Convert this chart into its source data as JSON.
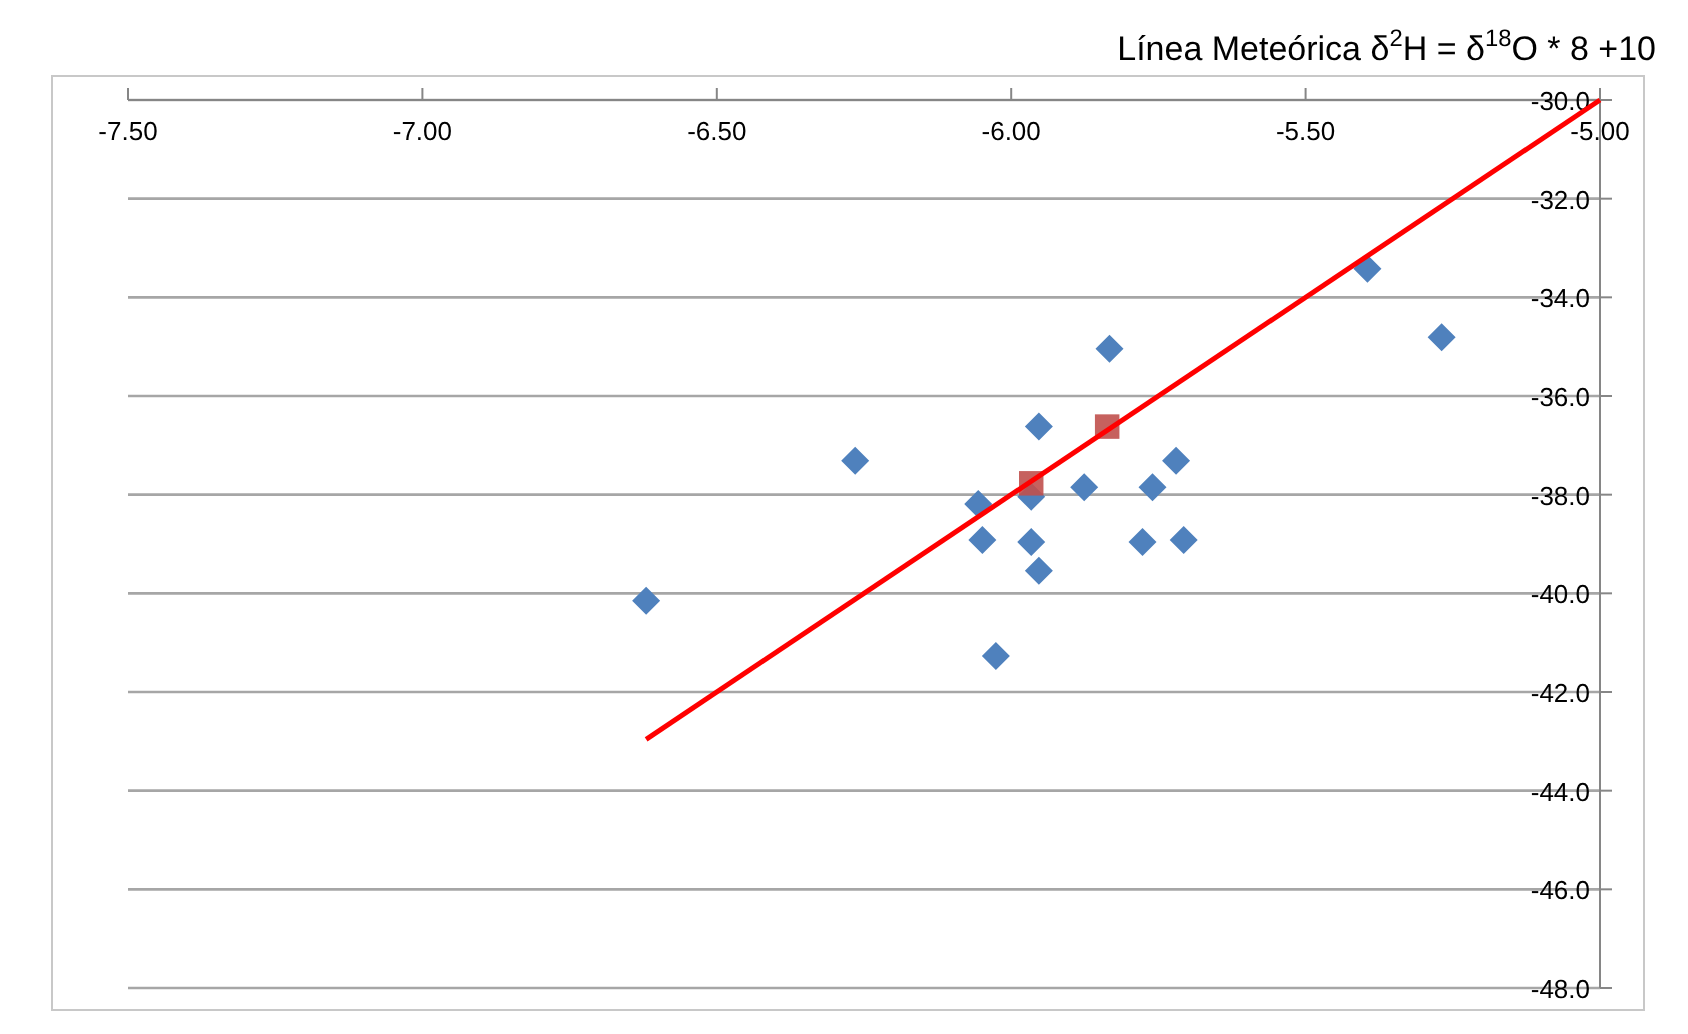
{
  "chart_data": {
    "type": "scatter",
    "title": "Línea Meteórica δ$^{2}$H = δ$^{18}$O * 8 +10",
    "xlim": [
      -7.5,
      -5.0
    ],
    "xticks": [
      {
        "value": -7.5,
        "label": "-7.50"
      },
      {
        "value": -7.0,
        "label": "-7.00"
      },
      {
        "value": -6.5,
        "label": "-6.50"
      },
      {
        "value": -6.0,
        "label": "-6.00"
      },
      {
        "value": -5.5,
        "label": "-5.50"
      },
      {
        "value": -5.0,
        "label": "-5.00"
      }
    ],
    "ylim": [
      -48,
      -30
    ],
    "yticks": [
      {
        "value": -30,
        "label": "-30.0"
      },
      {
        "value": -32,
        "label": "-32.0"
      },
      {
        "value": -34,
        "label": "-34.0"
      },
      {
        "value": -36,
        "label": "-36.0"
      },
      {
        "value": -38,
        "label": "-38.0"
      },
      {
        "value": -40,
        "label": "-40.0"
      },
      {
        "value": -42,
        "label": "-42.0"
      },
      {
        "value": -44,
        "label": "-44.0"
      },
      {
        "value": -46,
        "label": "-46.0"
      },
      {
        "value": -48,
        "label": "-48.0"
      }
    ],
    "grid": "y",
    "series": [
      {
        "marker": "diamond",
        "color": "#4f81bd",
        "x": [
          -6.265,
          -6.62,
          -6.056,
          -6.049,
          -6.026,
          -5.966,
          -5.966,
          -5.953,
          -5.953,
          -5.876,
          -5.833,
          -5.777,
          -5.76,
          -5.72,
          -5.707,
          -5.395,
          -5.269
        ],
        "values": [
          -37.31,
          -40.15,
          -38.19,
          -38.92,
          -41.27,
          -38.04,
          -38.96,
          -36.62,
          -39.54,
          -37.85,
          -35.04,
          -38.96,
          -37.85,
          -37.31,
          -38.92,
          -33.42,
          -34.81
        ]
      },
      {
        "marker": "square",
        "color": "#c0504d",
        "x": [
          -5.966,
          -5.837
        ],
        "values": [
          -37.77,
          -36.62
        ]
      },
      {
        "type": "line",
        "marker": "none",
        "color": "#ff0000",
        "x": [
          -6.62,
          -5.0
        ],
        "values": [
          -42.96,
          -30.0
        ]
      }
    ]
  }
}
